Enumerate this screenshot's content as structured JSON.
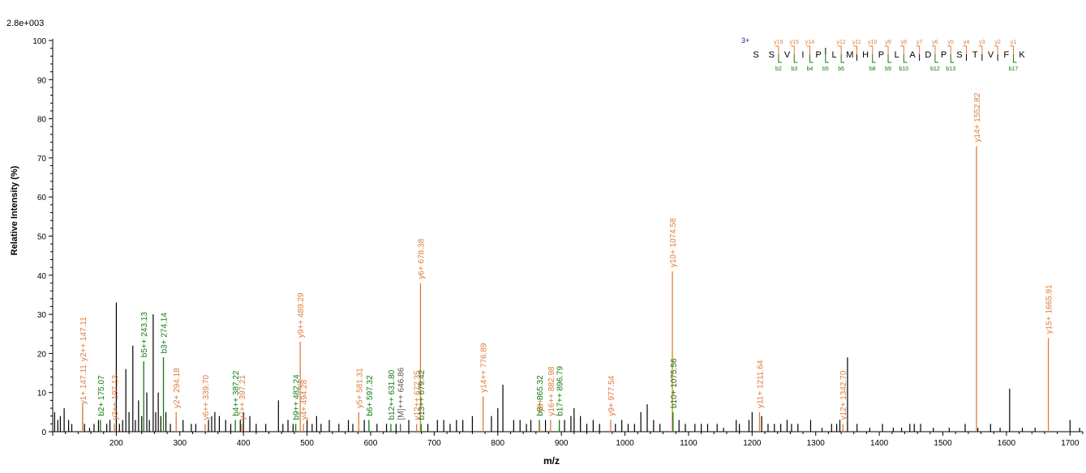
{
  "chart_data": {
    "type": "bar",
    "max_intensity_label": "2.8e+003",
    "xlabel": "m/z",
    "ylabel": "Relative Intensity (%)",
    "xlim": [
      100,
      1720
    ],
    "ylim": [
      0,
      100
    ],
    "x_ticks": [
      200,
      300,
      400,
      500,
      600,
      700,
      800,
      900,
      1000,
      1100,
      1200,
      1300,
      1400,
      1500,
      1600,
      1700
    ],
    "y_ticks": [
      0,
      10,
      20,
      30,
      40,
      50,
      60,
      70,
      80,
      90,
      100
    ],
    "colors": {
      "y_ion": "#e07b39",
      "b_ion": "#117a11",
      "precursor": "#555555",
      "noise": "#000000",
      "charge": "#1a1aa8"
    },
    "noise_peaks": [
      [
        103,
        5
      ],
      [
        108,
        3
      ],
      [
        112,
        4
      ],
      [
        118,
        6
      ],
      [
        125,
        3
      ],
      [
        130,
        2
      ],
      [
        150,
        2
      ],
      [
        158,
        1
      ],
      [
        165,
        2
      ],
      [
        172,
        3
      ],
      [
        185,
        2
      ],
      [
        190,
        3
      ],
      [
        200,
        33
      ],
      [
        205,
        2
      ],
      [
        210,
        3
      ],
      [
        215,
        16
      ],
      [
        220,
        5
      ],
      [
        226,
        22
      ],
      [
        230,
        3
      ],
      [
        235,
        8
      ],
      [
        240,
        4
      ],
      [
        248,
        10
      ],
      [
        252,
        3
      ],
      [
        258,
        30
      ],
      [
        262,
        5
      ],
      [
        266,
        10
      ],
      [
        270,
        4
      ],
      [
        278,
        5
      ],
      [
        285,
        2
      ],
      [
        305,
        3
      ],
      [
        318,
        2
      ],
      [
        325,
        2
      ],
      [
        345,
        3
      ],
      [
        350,
        4
      ],
      [
        355,
        5
      ],
      [
        362,
        4
      ],
      [
        372,
        3
      ],
      [
        380,
        2
      ],
      [
        395,
        3
      ],
      [
        400,
        5
      ],
      [
        410,
        4
      ],
      [
        420,
        2
      ],
      [
        435,
        2
      ],
      [
        455,
        8
      ],
      [
        462,
        2
      ],
      [
        470,
        3
      ],
      [
        478,
        2
      ],
      [
        500,
        3
      ],
      [
        508,
        2
      ],
      [
        515,
        4
      ],
      [
        522,
        2
      ],
      [
        535,
        3
      ],
      [
        550,
        2
      ],
      [
        565,
        3
      ],
      [
        572,
        2
      ],
      [
        590,
        3
      ],
      [
        610,
        2
      ],
      [
        625,
        2
      ],
      [
        640,
        2
      ],
      [
        660,
        3
      ],
      [
        690,
        2
      ],
      [
        705,
        3
      ],
      [
        715,
        3
      ],
      [
        725,
        2
      ],
      [
        735,
        3
      ],
      [
        745,
        3
      ],
      [
        760,
        4
      ],
      [
        790,
        4
      ],
      [
        800,
        6
      ],
      [
        808,
        12
      ],
      [
        825,
        3
      ],
      [
        835,
        3
      ],
      [
        845,
        2
      ],
      [
        852,
        3
      ],
      [
        875,
        3
      ],
      [
        905,
        3
      ],
      [
        915,
        4
      ],
      [
        920,
        6
      ],
      [
        930,
        4
      ],
      [
        940,
        2
      ],
      [
        950,
        3
      ],
      [
        960,
        2
      ],
      [
        985,
        2
      ],
      [
        995,
        3
      ],
      [
        1005,
        2
      ],
      [
        1015,
        2
      ],
      [
        1025,
        5
      ],
      [
        1035,
        7
      ],
      [
        1045,
        3
      ],
      [
        1055,
        2
      ],
      [
        1085,
        3
      ],
      [
        1095,
        2
      ],
      [
        1110,
        2
      ],
      [
        1120,
        2
      ],
      [
        1130,
        2
      ],
      [
        1145,
        2
      ],
      [
        1155,
        1
      ],
      [
        1175,
        3
      ],
      [
        1180,
        2
      ],
      [
        1195,
        3
      ],
      [
        1200,
        5
      ],
      [
        1215,
        4
      ],
      [
        1225,
        2
      ],
      [
        1235,
        2
      ],
      [
        1245,
        2
      ],
      [
        1255,
        3
      ],
      [
        1262,
        2
      ],
      [
        1272,
        2
      ],
      [
        1292,
        3
      ],
      [
        1310,
        1
      ],
      [
        1325,
        2
      ],
      [
        1333,
        2
      ],
      [
        1338,
        3
      ],
      [
        1350,
        19
      ],
      [
        1365,
        2
      ],
      [
        1385,
        1
      ],
      [
        1405,
        2
      ],
      [
        1422,
        1
      ],
      [
        1435,
        1
      ],
      [
        1448,
        2
      ],
      [
        1455,
        2
      ],
      [
        1465,
        2
      ],
      [
        1485,
        1
      ],
      [
        1510,
        1
      ],
      [
        1535,
        2
      ],
      [
        1555,
        1
      ],
      [
        1575,
        2
      ],
      [
        1590,
        1
      ],
      [
        1605,
        11
      ],
      [
        1625,
        1
      ],
      [
        1645,
        1
      ],
      [
        1700,
        3
      ],
      [
        1715,
        1
      ]
    ],
    "annotated_peaks": [
      {
        "mz": 147.11,
        "intensity": 6,
        "ion": "y",
        "label": "y1+ 147.11"
      },
      {
        "mz": 147.11,
        "intensity": 7,
        "ion": "y",
        "label": "y2++ 147.11",
        "label_base": 17
      },
      {
        "mz": 175.07,
        "intensity": 3,
        "ion": "b",
        "label": "b2+ 175.07"
      },
      {
        "mz": 197.13,
        "intensity": 2,
        "ion": "y",
        "label": "y3++ 197.13"
      },
      {
        "mz": 243.13,
        "intensity": 18,
        "ion": "b",
        "label": "b5++ 243.13"
      },
      {
        "mz": 274.14,
        "intensity": 19,
        "ion": "b",
        "label": "b3+ 274.14"
      },
      {
        "mz": 294.18,
        "intensity": 5,
        "ion": "y",
        "label": "y2+ 294.18"
      },
      {
        "mz": 339.7,
        "intensity": 2,
        "ion": "y",
        "label": "y6++ 339.70"
      },
      {
        "mz": 387.22,
        "intensity": 3,
        "ion": "b",
        "label": "b4++ 387.22"
      },
      {
        "mz": 397.21,
        "intensity": 2,
        "ion": "y",
        "label": "y7++ 397.21"
      },
      {
        "mz": 482.24,
        "intensity": 2,
        "ion": "b",
        "label": "b9++ 482.24"
      },
      {
        "mz": 489.29,
        "intensity": 23,
        "ion": "y",
        "label": "y9++ 489.29"
      },
      {
        "mz": 494.28,
        "intensity": 2,
        "ion": "y",
        "label": "y4+ 494.28"
      },
      {
        "mz": 581.31,
        "intensity": 5,
        "ion": "y",
        "label": "y5+ 581.31"
      },
      {
        "mz": 597.32,
        "intensity": 3,
        "ion": "b",
        "label": "b6+ 597.32"
      },
      {
        "mz": 631.8,
        "intensity": 2,
        "ion": "b",
        "label": "b12++ 631.80"
      },
      {
        "mz": 646.86,
        "intensity": 2,
        "ion": "p",
        "label": "[M]+++ 646.86"
      },
      {
        "mz": 672.35,
        "intensity": 2,
        "ion": "y",
        "label": "y12++ 672.35"
      },
      {
        "mz": 678.38,
        "intensity": 38,
        "ion": "y",
        "label": "y6+ 678.38"
      },
      {
        "mz": 679.42,
        "intensity": 2,
        "ion": "b",
        "label": "b13++ 679.42"
      },
      {
        "mz": 776.89,
        "intensity": 9,
        "ion": "y",
        "label": "y14++ 776.89"
      },
      {
        "mz": 865.32,
        "intensity": 3,
        "ion": "b",
        "label": "b8+ 865.32"
      },
      {
        "mz": 866.0,
        "intensity": 2,
        "ion": "y",
        "label": "y8+",
        "label_base": 4
      },
      {
        "mz": 882.98,
        "intensity": 3,
        "ion": "y",
        "label": "y16++ 882.98"
      },
      {
        "mz": 896.79,
        "intensity": 3,
        "ion": "b",
        "label": "b17++ 896.79"
      },
      {
        "mz": 977.54,
        "intensity": 3,
        "ion": "y",
        "label": "y9+ 977.54"
      },
      {
        "mz": 1074.58,
        "intensity": 41,
        "ion": "y",
        "label": "y10+ 1074.58"
      },
      {
        "mz": 1075.56,
        "intensity": 5,
        "ion": "b",
        "label": "b10+ 1075.56"
      },
      {
        "mz": 1211.64,
        "intensity": 5,
        "ion": "y",
        "label": "y11+ 1211.64"
      },
      {
        "mz": 1342.7,
        "intensity": 2,
        "ion": "y",
        "label": "y12+ 1342.70"
      },
      {
        "mz": 1552.82,
        "intensity": 73,
        "ion": "y",
        "label": "y14+ 1552.82"
      },
      {
        "mz": 1665.91,
        "intensity": 24,
        "ion": "y",
        "label": "y15+ 1665.91"
      }
    ],
    "sequence": {
      "charge_label": "3+",
      "residues": [
        "S",
        "S",
        "V",
        "I",
        "P",
        "L",
        "M",
        "H",
        "P",
        "L",
        "A",
        "D",
        "P",
        "S",
        "T",
        "V",
        "F",
        "K"
      ],
      "y_labels": [
        "y16",
        "y15",
        "y14",
        "",
        "y12",
        "y11",
        "y10",
        "y9",
        "y8",
        "y7",
        "y6",
        "y5",
        "y4",
        "y3",
        "y2",
        "y1"
      ],
      "b_labels": [
        "b2",
        "b3",
        "b4",
        "b5",
        "b6",
        "",
        "b8",
        "b9",
        "b10",
        "",
        "b12",
        "b13",
        "",
        "",
        "",
        "b17"
      ]
    }
  }
}
